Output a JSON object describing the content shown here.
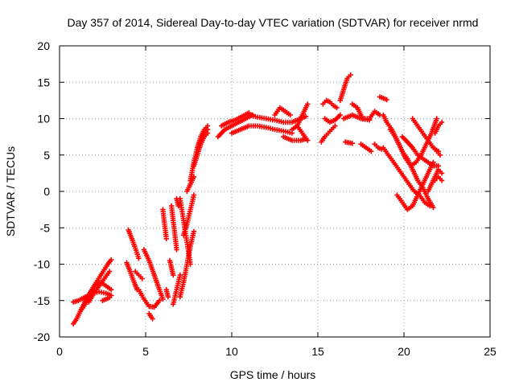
{
  "chart_data": {
    "type": "scatter",
    "title": "Day 357 of 2014, Sidereal Day-to-day VTEC variation (SDTVAR) for receiver nrmd",
    "xlabel": "GPS time / hours",
    "ylabel": "SDTVAR / TECUs",
    "xlim": [
      0,
      25
    ],
    "ylim": [
      -20,
      20
    ],
    "x_ticks": [
      0,
      5,
      10,
      15,
      20,
      25
    ],
    "y_ticks": [
      -20,
      -15,
      -10,
      -5,
      0,
      5,
      10,
      15,
      20
    ],
    "grid": true,
    "marker": "plus",
    "colors": {
      "series": "#ff0000",
      "grid": "#a0a0a0",
      "axes": "#000000"
    },
    "tracks": [
      {
        "x": [
          0.8,
          1.0,
          1.3,
          1.6,
          2.0,
          2.4,
          2.8,
          3.0
        ],
        "y": [
          -18.2,
          -17.5,
          -16.0,
          -14.6,
          -13.0,
          -11.5,
          -10.0,
          -9.4
        ]
      },
      {
        "x": [
          0.8,
          1.1,
          1.5,
          1.9,
          2.3,
          2.7,
          3.0
        ],
        "y": [
          -15.2,
          -15.0,
          -14.5,
          -14.0,
          -13.8,
          -14.0,
          -14.3
        ]
      },
      {
        "x": [
          1.2,
          1.5,
          1.8,
          2.1,
          2.4,
          2.7,
          3.0
        ],
        "y": [
          -16.5,
          -15.5,
          -14.0,
          -13.0,
          -12.5,
          -13.0,
          -13.5
        ]
      },
      {
        "x": [
          1.7,
          2.0,
          2.3,
          2.6,
          2.9
        ],
        "y": [
          -15.2,
          -14.0,
          -13.0,
          -12.0,
          -11.0
        ]
      },
      {
        "x": [
          2.5,
          2.7,
          2.9
        ],
        "y": [
          -15.0,
          -14.8,
          -14.6
        ]
      },
      {
        "x": [
          4.0,
          4.2,
          4.4,
          4.6
        ],
        "y": [
          -5.3,
          -6.5,
          -7.8,
          -9.2
        ]
      },
      {
        "x": [
          3.9,
          4.1,
          4.3,
          4.5
        ],
        "y": [
          -9.8,
          -11.0,
          -12.3,
          -13.5
        ]
      },
      {
        "x": [
          4.4,
          4.6,
          4.8
        ],
        "y": [
          -11.0,
          -11.5,
          -12.0
        ]
      },
      {
        "x": [
          4.6,
          4.9,
          5.2,
          5.5,
          5.8
        ],
        "y": [
          -13.5,
          -14.8,
          -15.8,
          -15.9,
          -15.0
        ]
      },
      {
        "x": [
          4.9,
          5.2,
          5.5,
          5.8,
          6.0
        ],
        "y": [
          -8.0,
          -9.5,
          -11.5,
          -13.5,
          -14.8
        ]
      },
      {
        "x": [
          5.2,
          5.4
        ],
        "y": [
          -16.8,
          -17.5
        ]
      },
      {
        "x": [
          6.0,
          6.1,
          6.2
        ],
        "y": [
          -2.5,
          -4.5,
          -6.5
        ]
      },
      {
        "x": [
          6.2,
          6.3
        ],
        "y": [
          -13.5,
          -14.5
        ]
      },
      {
        "x": [
          6.4,
          6.5,
          6.6
        ],
        "y": [
          -9.5,
          -10.5,
          -11.5
        ]
      },
      {
        "x": [
          6.5,
          6.6,
          6.7,
          6.8
        ],
        "y": [
          -2.0,
          -4.0,
          -6.0,
          -8.0
        ]
      },
      {
        "x": [
          6.6,
          6.8,
          7.0
        ],
        "y": [
          -15.5,
          -13.5,
          -11.5
        ]
      },
      {
        "x": [
          6.8,
          6.9
        ],
        "y": [
          -1.0,
          -2.0
        ]
      },
      {
        "x": [
          7.0,
          7.1,
          7.2,
          7.3,
          7.4,
          7.5,
          7.6
        ],
        "y": [
          -1.0,
          -2.5,
          -4.0,
          -5.5,
          -7.0,
          -8.5,
          -10.0
        ]
      },
      {
        "x": [
          7.0,
          7.2,
          7.4,
          7.6,
          7.8
        ],
        "y": [
          -14.5,
          -12.5,
          -10.0,
          -7.5,
          -5.5
        ]
      },
      {
        "x": [
          7.2,
          7.4,
          7.6,
          7.8
        ],
        "y": [
          -6.0,
          -4.5,
          -2.5,
          -0.5
        ]
      },
      {
        "x": [
          7.4,
          7.5,
          7.6,
          7.7,
          7.8
        ],
        "y": [
          0.0,
          0.5,
          1.0,
          1.5,
          2.0
        ]
      },
      {
        "x": [
          7.6,
          7.8,
          8.0,
          8.2,
          8.4,
          8.6
        ],
        "y": [
          1.5,
          4.0,
          6.0,
          7.5,
          8.5,
          9.0
        ]
      },
      {
        "x": [
          7.8,
          8.0,
          8.2,
          8.4,
          8.6
        ],
        "y": [
          3.5,
          5.0,
          6.5,
          7.5,
          8.0
        ]
      },
      {
        "x": [
          8.0,
          8.2,
          8.4,
          8.6
        ],
        "y": [
          6.0,
          7.0,
          8.0,
          8.5
        ]
      },
      {
        "x": [
          9.2,
          9.6,
          10.0,
          10.4,
          10.8,
          11.2
        ],
        "y": [
          7.5,
          8.5,
          9.0,
          9.5,
          10.0,
          10.5
        ]
      },
      {
        "x": [
          9.4,
          9.8,
          10.2,
          10.6,
          11.0
        ],
        "y": [
          9.0,
          9.5,
          9.8,
          10.3,
          10.8
        ]
      },
      {
        "x": [
          10.0,
          10.5,
          11.0,
          11.5,
          12.0,
          12.5,
          13.0,
          13.5
        ],
        "y": [
          8.0,
          8.5,
          9.0,
          9.0,
          8.8,
          8.5,
          8.3,
          8.0
        ]
      },
      {
        "x": [
          11.0,
          11.5,
          12.0,
          12.5,
          13.0,
          13.5,
          14.0,
          14.3
        ],
        "y": [
          10.5,
          10.2,
          10.0,
          9.8,
          9.5,
          9.5,
          10.0,
          10.3
        ]
      },
      {
        "x": [
          12.5,
          12.8,
          13.1,
          13.4
        ],
        "y": [
          10.5,
          11.5,
          11.0,
          10.5
        ]
      },
      {
        "x": [
          13.0,
          13.5,
          14.0,
          14.3
        ],
        "y": [
          7.5,
          7.0,
          7.0,
          7.2
        ]
      },
      {
        "x": [
          13.8,
          14.0,
          14.2,
          14.4
        ],
        "y": [
          9.0,
          10.0,
          11.0,
          12.0
        ]
      },
      {
        "x": [
          13.5,
          13.8,
          14.1,
          14.4
        ],
        "y": [
          8.5,
          9.0,
          8.0,
          7.0
        ]
      },
      {
        "x": [
          15.2,
          15.4,
          15.6,
          15.8,
          16.0
        ],
        "y": [
          6.8,
          7.5,
          8.0,
          8.5,
          9.0
        ]
      },
      {
        "x": [
          15.4,
          15.7,
          16.0,
          16.3
        ],
        "y": [
          10.0,
          9.5,
          9.8,
          10.5
        ]
      },
      {
        "x": [
          15.3,
          15.5,
          15.7,
          15.9,
          16.1
        ],
        "y": [
          12.0,
          12.5,
          12.3,
          11.8,
          11.5
        ]
      },
      {
        "x": [
          16.3,
          16.5,
          16.7,
          16.9
        ],
        "y": [
          12.5,
          14.0,
          15.5,
          16.0
        ]
      },
      {
        "x": [
          16.5,
          17.0,
          17.5,
          18.0
        ],
        "y": [
          10.0,
          10.5,
          10.0,
          9.8
        ]
      },
      {
        "x": [
          16.6,
          16.8,
          17.0
        ],
        "y": [
          6.8,
          6.7,
          6.6
        ]
      },
      {
        "x": [
          17.0,
          17.3,
          17.6,
          18.0,
          18.3,
          18.6
        ],
        "y": [
          12.0,
          11.5,
          10.0,
          10.0,
          11.0,
          10.5
        ]
      },
      {
        "x": [
          17.5,
          17.8,
          18.1
        ],
        "y": [
          6.5,
          6.0,
          5.5
        ]
      },
      {
        "x": [
          18.3,
          18.5,
          18.7
        ],
        "y": [
          6.5,
          6.0,
          5.8
        ]
      },
      {
        "x": [
          18.6,
          18.8,
          19.0
        ],
        "y": [
          13.0,
          12.8,
          12.6
        ]
      },
      {
        "x": [
          18.8,
          19.0,
          19.3,
          19.6,
          19.9,
          20.2,
          20.5,
          20.8,
          21.1,
          21.4,
          21.7
        ],
        "y": [
          10.5,
          9.5,
          8.5,
          7.0,
          5.5,
          4.5,
          3.0,
          1.5,
          0.5,
          -1.0,
          -2.2
        ]
      },
      {
        "x": [
          18.8,
          19.1,
          19.4,
          19.7,
          20.0,
          20.3,
          20.6,
          20.9,
          21.2,
          21.5
        ],
        "y": [
          6.0,
          5.0,
          4.0,
          3.0,
          2.0,
          1.0,
          0.0,
          -0.5,
          -1.5,
          -2.0
        ]
      },
      {
        "x": [
          19.2,
          19.5,
          19.8,
          20.1,
          20.4,
          20.7,
          21.0,
          21.3,
          21.6,
          21.9
        ],
        "y": [
          8.5,
          7.5,
          6.0,
          4.5,
          3.5,
          4.0,
          5.0,
          6.5,
          8.0,
          10.0
        ]
      },
      {
        "x": [
          19.6,
          19.9,
          20.2,
          20.5,
          20.8,
          21.1,
          21.4,
          21.7
        ],
        "y": [
          -0.5,
          -1.5,
          -2.5,
          -2.0,
          -0.5,
          1.0,
          2.5,
          4.0
        ]
      },
      {
        "x": [
          19.9,
          20.2,
          20.5,
          20.8,
          21.1,
          21.4,
          21.7,
          22.0
        ],
        "y": [
          7.5,
          6.8,
          6.0,
          5.0,
          4.5,
          4.0,
          3.5,
          3.5
        ]
      },
      {
        "x": [
          20.5,
          20.8,
          21.1,
          21.4,
          21.7,
          22.0
        ],
        "y": [
          10.0,
          9.0,
          8.0,
          7.0,
          6.0,
          5.5
        ]
      },
      {
        "x": [
          21.4,
          21.6,
          21.8,
          22.0,
          22.2
        ],
        "y": [
          0.0,
          1.0,
          2.0,
          3.0,
          2.5
        ]
      },
      {
        "x": [
          21.8,
          22.0,
          22.2
        ],
        "y": [
          1.5,
          2.0,
          1.5
        ]
      },
      {
        "x": [
          21.8,
          22.0,
          22.2
        ],
        "y": [
          8.0,
          9.0,
          9.5
        ]
      },
      {
        "x": [
          21.9,
          22.1
        ],
        "y": [
          5.5,
          5.0
        ]
      }
    ]
  }
}
